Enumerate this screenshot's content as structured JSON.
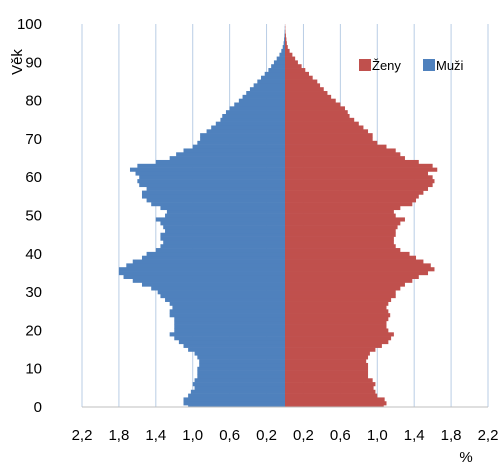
{
  "chart_data": {
    "type": "bar",
    "orientation": "horizontal",
    "ylabel": "Věk",
    "xlabel": "%",
    "y_ticks": [
      "0",
      "10",
      "20",
      "30",
      "40",
      "50",
      "60",
      "70",
      "80",
      "90",
      "100"
    ],
    "x_ticks": [
      "2,2",
      "1,8",
      "1,4",
      "1,0",
      "0,6",
      "0,2",
      "0,2",
      "0,6",
      "1,0",
      "1,4",
      "1,8",
      "2,2"
    ],
    "ylim": [
      0,
      100
    ],
    "xlim": [
      -2.2,
      2.2
    ],
    "grid": "vertical",
    "legend_position": "top-right",
    "colors": {
      "zeny": "#c0504d",
      "muzi": "#4f81bd"
    },
    "ages": [
      0,
      1,
      2,
      3,
      4,
      5,
      6,
      7,
      8,
      9,
      10,
      11,
      12,
      13,
      14,
      15,
      16,
      17,
      18,
      19,
      20,
      21,
      22,
      23,
      24,
      25,
      26,
      27,
      28,
      29,
      30,
      31,
      32,
      33,
      34,
      35,
      36,
      37,
      38,
      39,
      40,
      41,
      42,
      43,
      44,
      45,
      46,
      47,
      48,
      49,
      50,
      51,
      52,
      53,
      54,
      55,
      56,
      57,
      58,
      59,
      60,
      61,
      62,
      63,
      64,
      65,
      66,
      67,
      68,
      69,
      70,
      71,
      72,
      73,
      74,
      75,
      76,
      77,
      78,
      79,
      80,
      81,
      82,
      83,
      84,
      85,
      86,
      87,
      88,
      89,
      90,
      91,
      92,
      93,
      94,
      95,
      96,
      97,
      98,
      99,
      100
    ],
    "series": [
      {
        "name": "Ženy",
        "values": [
          1.07,
          1.1,
          1.08,
          1.0,
          0.98,
          0.96,
          0.98,
          0.95,
          0.9,
          0.9,
          0.9,
          0.9,
          0.88,
          0.9,
          0.92,
          0.98,
          1.05,
          1.12,
          1.15,
          1.18,
          1.12,
          1.1,
          1.1,
          1.12,
          1.14,
          1.12,
          1.1,
          1.12,
          1.15,
          1.2,
          1.2,
          1.25,
          1.3,
          1.38,
          1.45,
          1.55,
          1.62,
          1.58,
          1.5,
          1.42,
          1.35,
          1.25,
          1.2,
          1.18,
          1.18,
          1.2,
          1.2,
          1.22,
          1.25,
          1.3,
          1.2,
          1.18,
          1.25,
          1.38,
          1.42,
          1.45,
          1.5,
          1.55,
          1.6,
          1.62,
          1.6,
          1.55,
          1.65,
          1.6,
          1.45,
          1.3,
          1.25,
          1.2,
          1.1,
          1.0,
          0.95,
          0.95,
          0.9,
          0.85,
          0.8,
          0.75,
          0.7,
          0.68,
          0.65,
          0.6,
          0.55,
          0.5,
          0.46,
          0.42,
          0.38,
          0.35,
          0.3,
          0.26,
          0.22,
          0.18,
          0.14,
          0.11,
          0.08,
          0.05,
          0.03,
          0.02,
          0.015,
          0.01,
          0.005,
          0.003,
          0.002
        ]
      },
      {
        "name": "Muži",
        "values": [
          1.05,
          1.1,
          1.1,
          1.05,
          1.02,
          0.98,
          1.0,
          0.98,
          0.95,
          0.95,
          0.95,
          0.93,
          0.93,
          0.95,
          0.98,
          1.05,
          1.1,
          1.15,
          1.2,
          1.25,
          1.2,
          1.2,
          1.2,
          1.2,
          1.25,
          1.25,
          1.22,
          1.25,
          1.3,
          1.35,
          1.38,
          1.45,
          1.55,
          1.65,
          1.75,
          1.8,
          1.8,
          1.72,
          1.65,
          1.55,
          1.5,
          1.4,
          1.35,
          1.32,
          1.35,
          1.35,
          1.3,
          1.32,
          1.35,
          1.4,
          1.3,
          1.28,
          1.35,
          1.45,
          1.5,
          1.55,
          1.55,
          1.5,
          1.58,
          1.6,
          1.58,
          1.62,
          1.68,
          1.6,
          1.4,
          1.25,
          1.18,
          1.1,
          1.0,
          0.95,
          0.92,
          0.92,
          0.85,
          0.8,
          0.75,
          0.7,
          0.68,
          0.64,
          0.6,
          0.55,
          0.5,
          0.46,
          0.42,
          0.38,
          0.34,
          0.3,
          0.26,
          0.22,
          0.18,
          0.15,
          0.12,
          0.09,
          0.06,
          0.04,
          0.025,
          0.015,
          0.01,
          0.006,
          0.004,
          0.002,
          0.001
        ]
      }
    ]
  }
}
